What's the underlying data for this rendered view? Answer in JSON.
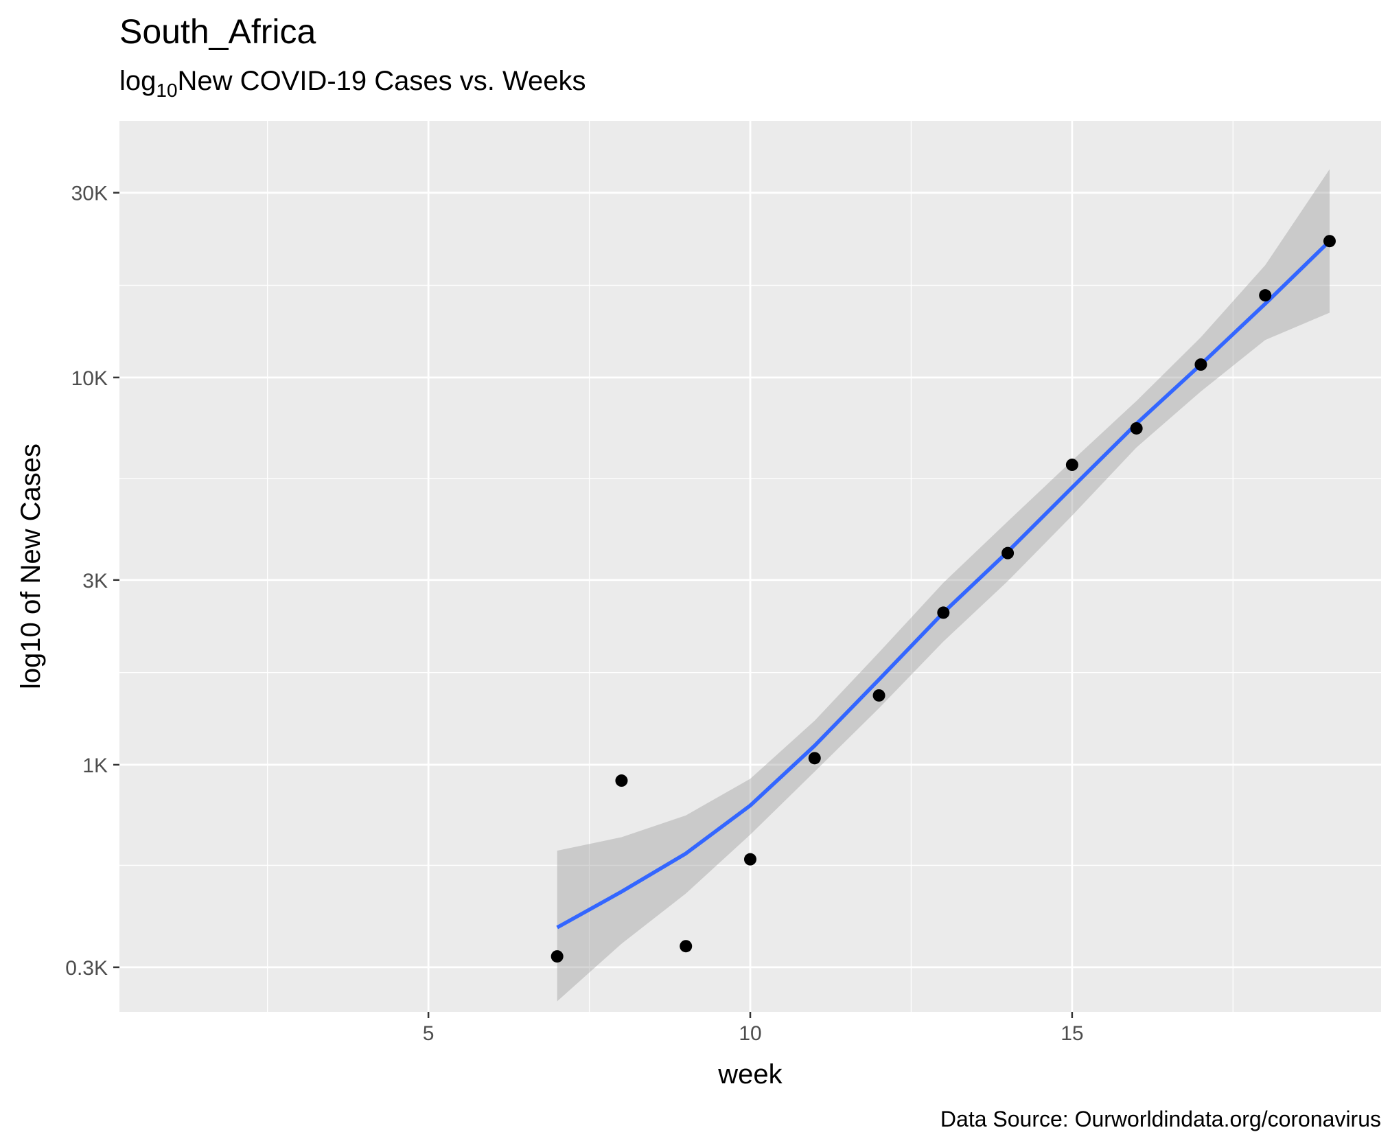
{
  "chart_data": {
    "type": "scatter",
    "title": "South_Africa",
    "subtitle": {
      "prefix": "log",
      "subscript": "10",
      "rest": "New COVID-19 Cases vs. Weeks"
    },
    "xlabel": "week",
    "ylabel": "log10 of New Cases",
    "caption": "Data Source: Ourworldindata.org/coronavirus",
    "x_scale": "linear",
    "y_scale": "log10",
    "xlim": [
      0.2,
      19.8
    ],
    "ylim": [
      230,
      46000
    ],
    "x_ticks": [
      {
        "value": 5,
        "label": "5"
      },
      {
        "value": 10,
        "label": "10"
      },
      {
        "value": 15,
        "label": "15"
      }
    ],
    "x_minor_ticks": [
      2.5,
      7.5,
      12.5,
      17.5
    ],
    "y_ticks": [
      {
        "value": 300,
        "label": "0.3K"
      },
      {
        "value": 1000,
        "label": "1K"
      },
      {
        "value": 3000,
        "label": "3K"
      },
      {
        "value": 10000,
        "label": "10K"
      },
      {
        "value": 30000,
        "label": "30K"
      }
    ],
    "y_minor_ticks": [
      550,
      1730,
      5480,
      17300
    ],
    "points": [
      {
        "x": 7,
        "y": 320
      },
      {
        "x": 8,
        "y": 910
      },
      {
        "x": 9,
        "y": 340
      },
      {
        "x": 10,
        "y": 570
      },
      {
        "x": 11,
        "y": 1040
      },
      {
        "x": 12,
        "y": 1510
      },
      {
        "x": 13,
        "y": 2470
      },
      {
        "x": 14,
        "y": 3520
      },
      {
        "x": 15,
        "y": 5950
      },
      {
        "x": 16,
        "y": 7390
      },
      {
        "x": 17,
        "y": 10800
      },
      {
        "x": 18,
        "y": 16300
      },
      {
        "x": 19,
        "y": 22500
      }
    ],
    "smooth_line": [
      {
        "x": 7,
        "y": 380
      },
      {
        "x": 8,
        "y": 470
      },
      {
        "x": 9,
        "y": 590
      },
      {
        "x": 10,
        "y": 785
      },
      {
        "x": 11,
        "y": 1120
      },
      {
        "x": 12,
        "y": 1660
      },
      {
        "x": 13,
        "y": 2470
      },
      {
        "x": 14,
        "y": 3550
      },
      {
        "x": 15,
        "y": 5200
      },
      {
        "x": 16,
        "y": 7600
      },
      {
        "x": 17,
        "y": 10800
      },
      {
        "x": 18,
        "y": 15500
      },
      {
        "x": 19,
        "y": 22500
      }
    ],
    "confidence_band": {
      "upper": [
        {
          "x": 7,
          "y": 600
        },
        {
          "x": 8,
          "y": 650
        },
        {
          "x": 9,
          "y": 740
        },
        {
          "x": 10,
          "y": 920
        },
        {
          "x": 11,
          "y": 1300
        },
        {
          "x": 12,
          "y": 1950
        },
        {
          "x": 13,
          "y": 2950
        },
        {
          "x": 14,
          "y": 4250
        },
        {
          "x": 15,
          "y": 6100
        },
        {
          "x": 16,
          "y": 8700
        },
        {
          "x": 17,
          "y": 12700
        },
        {
          "x": 18,
          "y": 19500
        },
        {
          "x": 19,
          "y": 34500
        }
      ],
      "lower": [
        {
          "x": 7,
          "y": 245
        },
        {
          "x": 8,
          "y": 345
        },
        {
          "x": 9,
          "y": 465
        },
        {
          "x": 10,
          "y": 660
        },
        {
          "x": 11,
          "y": 960
        },
        {
          "x": 12,
          "y": 1400
        },
        {
          "x": 13,
          "y": 2080
        },
        {
          "x": 14,
          "y": 2980
        },
        {
          "x": 15,
          "y": 4400
        },
        {
          "x": 16,
          "y": 6600
        },
        {
          "x": 17,
          "y": 9200
        },
        {
          "x": 18,
          "y": 12500
        },
        {
          "x": 19,
          "y": 14700
        }
      ]
    },
    "colors": {
      "panel_background": "#ebebeb",
      "grid": "#ffffff",
      "line": "#3366ff",
      "band": "#999999",
      "points": "#000000",
      "tick_text": "#4d4d4d",
      "tick_mark": "#333333"
    },
    "grid": true,
    "legend": "none"
  }
}
